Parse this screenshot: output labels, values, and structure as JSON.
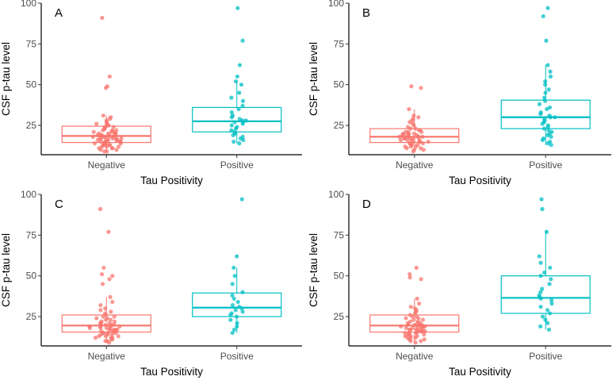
{
  "chart_data": [
    {
      "type": "boxplot",
      "panel_label": "A",
      "xlabel": "Tau Positivity",
      "ylabel": "CSF p-tau level",
      "categories": [
        "Negative",
        "Positive"
      ],
      "ylim": [
        7,
        100
      ],
      "yticks": [
        25,
        50,
        75,
        100
      ],
      "series": [
        {
          "name": "Negative",
          "color": "#F8766D",
          "box": {
            "q1": 14.5,
            "median": 18.5,
            "q3": 24.5,
            "whisker_low": 9,
            "whisker_high": 31
          },
          "points": [
            91,
            55,
            49,
            48,
            31,
            30,
            29,
            28,
            27,
            26,
            26,
            25,
            25,
            24,
            24,
            23,
            23,
            22,
            22,
            22,
            21,
            21,
            21,
            20,
            20,
            20,
            20,
            19,
            19,
            19,
            19,
            19,
            18,
            18,
            18,
            18,
            18,
            17,
            17,
            17,
            17,
            17,
            16,
            16,
            16,
            16,
            16,
            15,
            15,
            15,
            15,
            15,
            14,
            14,
            14,
            14,
            13,
            13,
            13,
            13,
            12,
            12,
            12,
            11,
            11,
            11,
            10,
            10,
            9,
            9
          ]
        },
        {
          "name": "Positive",
          "color": "#00BFC4",
          "box": {
            "q1": 21,
            "median": 27.5,
            "q3": 36,
            "whisker_low": 14,
            "whisker_high": 52
          },
          "points": [
            97,
            77,
            62,
            55,
            52,
            50,
            45,
            42,
            40,
            37,
            35,
            33,
            31,
            30,
            29,
            28,
            28,
            27,
            27,
            26,
            25,
            24,
            23,
            22,
            21,
            20,
            19,
            18,
            17,
            16,
            15,
            14
          ]
        }
      ]
    },
    {
      "type": "boxplot",
      "panel_label": "B",
      "xlabel": "Tau Positivity",
      "ylabel": "CSF p-tau level",
      "categories": [
        "Negative",
        "Positive"
      ],
      "ylim": [
        7,
        100
      ],
      "yticks": [
        25,
        50,
        75,
        100
      ],
      "series": [
        {
          "name": "Negative",
          "color": "#F8766D",
          "box": {
            "q1": 14.5,
            "median": 18,
            "q3": 23,
            "whisker_low": 9,
            "whisker_high": 35
          },
          "points": [
            49,
            48,
            35,
            31,
            30,
            29,
            28,
            27,
            26,
            25,
            24,
            23,
            23,
            22,
            22,
            21,
            21,
            21,
            20,
            20,
            20,
            19,
            19,
            19,
            19,
            18,
            18,
            18,
            18,
            18,
            17,
            17,
            17,
            17,
            16,
            16,
            16,
            16,
            15,
            15,
            15,
            15,
            14,
            14,
            14,
            13,
            13,
            13,
            12,
            12,
            12,
            11,
            11,
            10,
            10,
            9
          ]
        },
        {
          "name": "Positive",
          "color": "#00BFC4",
          "box": {
            "q1": 23,
            "median": 30,
            "q3": 40.5,
            "whisker_low": 13,
            "whisker_high": 62
          },
          "points": [
            97,
            92,
            77,
            62,
            58,
            55,
            52,
            50,
            47,
            45,
            42,
            40,
            38,
            36,
            35,
            33,
            32,
            31,
            30,
            30,
            29,
            28,
            27,
            26,
            25,
            24,
            23,
            22,
            21,
            20,
            19,
            18,
            17,
            16,
            15,
            14,
            13
          ]
        }
      ]
    },
    {
      "type": "boxplot",
      "panel_label": "C",
      "xlabel": "Tau Positivity",
      "ylabel": "CSF p-tau level",
      "categories": [
        "Negative",
        "Positive"
      ],
      "ylim": [
        7,
        100
      ],
      "yticks": [
        25,
        50,
        75,
        100
      ],
      "series": [
        {
          "name": "Negative",
          "color": "#F8766D",
          "box": {
            "q1": 15.5,
            "median": 19.5,
            "q3": 26,
            "whisker_low": 9,
            "whisker_high": 37
          },
          "points": [
            91,
            77,
            55,
            51,
            50,
            48,
            45,
            37,
            34,
            32,
            30,
            29,
            28,
            27,
            26,
            25,
            25,
            24,
            24,
            23,
            23,
            22,
            22,
            21,
            21,
            21,
            20,
            20,
            20,
            20,
            19,
            19,
            19,
            19,
            18,
            18,
            18,
            18,
            17,
            17,
            17,
            17,
            16,
            16,
            16,
            16,
            15,
            15,
            15,
            15,
            14,
            14,
            14,
            13,
            13,
            13,
            12,
            12,
            12,
            11,
            11,
            10,
            10,
            9
          ]
        },
        {
          "name": "Positive",
          "color": "#00BFC4",
          "box": {
            "q1": 25,
            "median": 30.5,
            "q3": 39.5,
            "whisker_low": 15,
            "whisker_high": 55
          },
          "points": [
            97,
            62,
            55,
            50,
            45,
            40,
            38,
            36,
            34,
            32,
            31,
            30,
            29,
            28,
            27,
            26,
            25,
            23,
            21,
            19,
            17,
            15
          ]
        }
      ]
    },
    {
      "type": "boxplot",
      "panel_label": "D",
      "xlabel": "Tau Positivity",
      "ylabel": "CSF p-tau level",
      "categories": [
        "Negative",
        "Positive"
      ],
      "ylim": [
        7,
        100
      ],
      "yticks": [
        25,
        50,
        75,
        100
      ],
      "series": [
        {
          "name": "Negative",
          "color": "#F8766D",
          "box": {
            "q1": 15.5,
            "median": 19.5,
            "q3": 26,
            "whisker_low": 9,
            "whisker_high": 36
          },
          "points": [
            55,
            51,
            49,
            48,
            36,
            33,
            31,
            30,
            29,
            28,
            27,
            26,
            25,
            25,
            24,
            24,
            23,
            23,
            22,
            22,
            21,
            21,
            21,
            20,
            20,
            20,
            20,
            19,
            19,
            19,
            19,
            18,
            18,
            18,
            18,
            17,
            17,
            17,
            17,
            16,
            16,
            16,
            16,
            15,
            15,
            15,
            15,
            14,
            14,
            14,
            13,
            13,
            13,
            12,
            12,
            12,
            11,
            11,
            10,
            10,
            9
          ]
        },
        {
          "name": "Positive",
          "color": "#00BFC4",
          "box": {
            "q1": 27,
            "median": 36.5,
            "q3": 50,
            "whisker_low": 17,
            "whisker_high": 78
          },
          "points": [
            97,
            91,
            77,
            62,
            58,
            55,
            52,
            50,
            48,
            45,
            42,
            40,
            38,
            37,
            36,
            35,
            33,
            31,
            29,
            27,
            25,
            23,
            21,
            19,
            17
          ]
        }
      ]
    }
  ]
}
